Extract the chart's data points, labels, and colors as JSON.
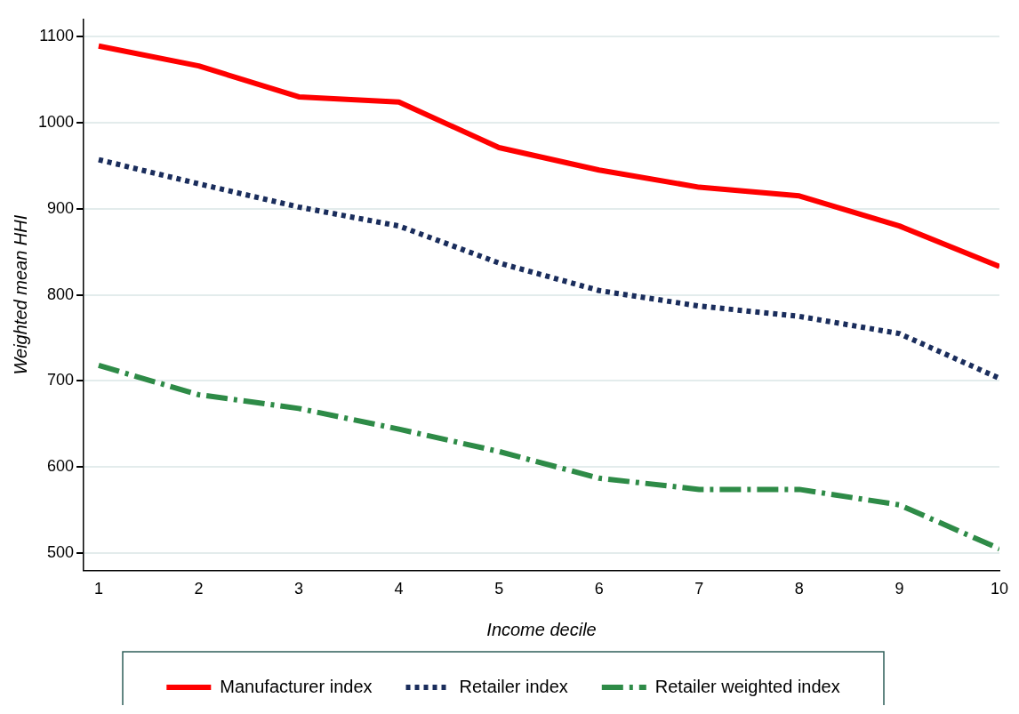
{
  "chart_data": {
    "type": "line",
    "xlabel": "Income decile",
    "ylabel": "Weighted mean HHI",
    "x": [
      1,
      2,
      3,
      4,
      5,
      6,
      7,
      8,
      9,
      10
    ],
    "series": [
      {
        "name": "Manufacturer index",
        "color": "#ff0000",
        "line_style": "solid",
        "values": [
          1089,
          1066,
          1030,
          1024,
          971,
          945,
          925,
          915,
          880,
          833
        ]
      },
      {
        "name": "Retailer index",
        "color": "#1a2d5c",
        "line_style": "dotted",
        "values": [
          957,
          929,
          902,
          880,
          837,
          805,
          787,
          775,
          755,
          703
        ]
      },
      {
        "name": "Retailer weighted index",
        "color": "#2e8b47",
        "line_style": "dashed",
        "values": [
          718,
          684,
          668,
          644,
          618,
          587,
          574,
          574,
          556,
          505
        ]
      }
    ],
    "xlim": [
      0.85,
      10
    ],
    "xticks": [
      1,
      2,
      3,
      4,
      5,
      6,
      7,
      8,
      9,
      10
    ],
    "ylim": [
      480,
      1120
    ],
    "yticks": [
      500,
      600,
      700,
      800,
      900,
      1000,
      1100
    ],
    "grid": "y",
    "legend": "bottom",
    "marker": "none"
  }
}
